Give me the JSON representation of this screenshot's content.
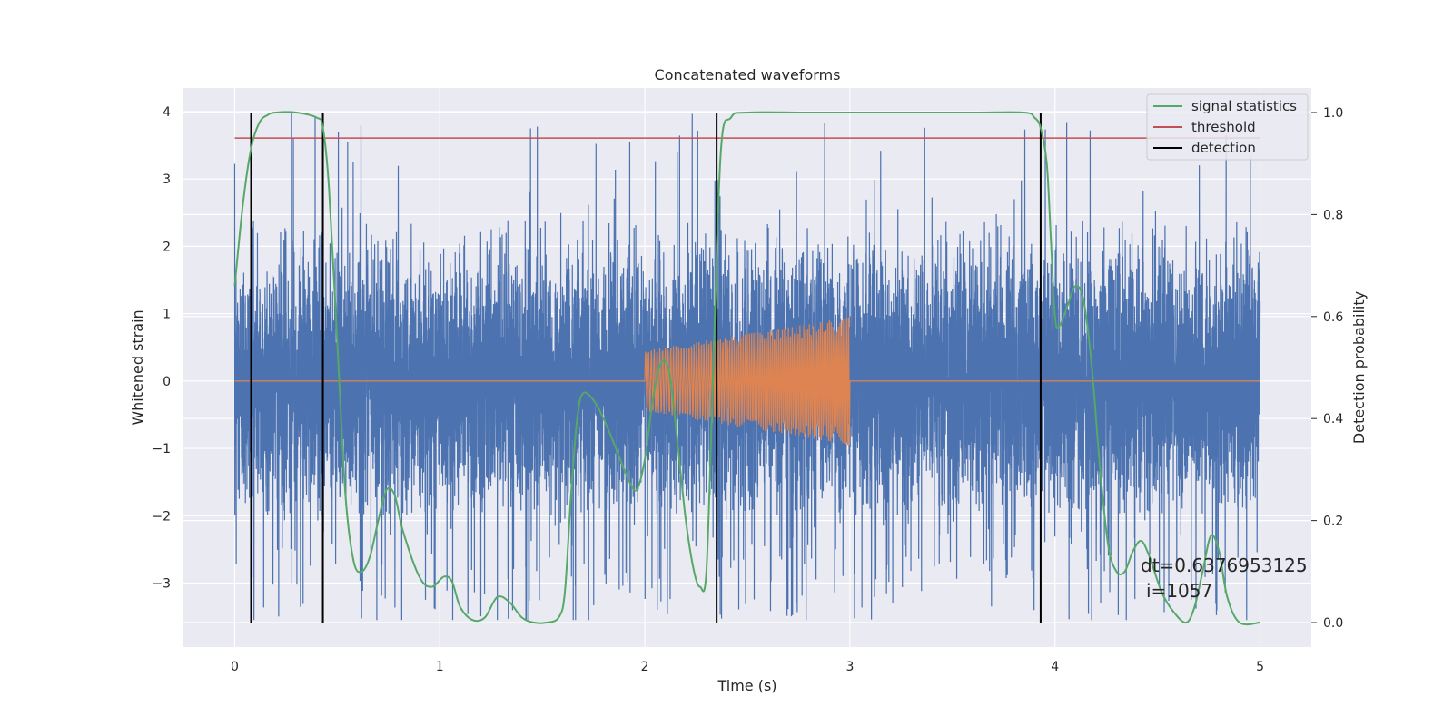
{
  "chart_data": {
    "type": "line",
    "title": "Concatenated waveforms",
    "xlabel": "Time (s)",
    "ylabel": "Whitened strain",
    "y2label": "Detection probability",
    "xlim": [
      -0.25,
      5.25
    ],
    "ylim": [
      -3.95,
      4.35
    ],
    "y2lim": [
      -0.048,
      1.048
    ],
    "x_ticks": [
      0,
      1,
      2,
      3,
      4,
      5
    ],
    "y_ticks": [
      -3,
      -2,
      -1,
      0,
      1,
      2,
      3,
      4
    ],
    "y2_ticks": [
      0.0,
      0.2,
      0.4,
      0.6,
      0.8,
      1.0
    ],
    "grid": true,
    "legend_position": "top-right",
    "colors": {
      "strain": "#4c72b0",
      "template": "#dd8452",
      "signal": "#55a868",
      "threshold": "#c44e52",
      "detection": "#000000",
      "axes_bg": "#eaeaf2"
    },
    "series": [
      {
        "name": "signal statistics",
        "axis": "right",
        "x": [
          0,
          0.04,
          0.08,
          0.12,
          0.16,
          0.2,
          0.3,
          0.4,
          0.43,
          0.46,
          0.5,
          0.54,
          0.58,
          0.62,
          0.66,
          0.7,
          0.74,
          0.78,
          0.82,
          0.9,
          0.96,
          1.02,
          1.06,
          1.1,
          1.16,
          1.22,
          1.28,
          1.34,
          1.4,
          1.46,
          1.52,
          1.58,
          1.61,
          1.64,
          1.67,
          1.7,
          1.76,
          1.82,
          1.88,
          1.92,
          1.96,
          2.0,
          2.04,
          2.08,
          2.12,
          2.16,
          2.2,
          2.24,
          2.27,
          2.3,
          2.33,
          2.37,
          2.42,
          2.5,
          2.8,
          3.2,
          3.6,
          3.85,
          3.9,
          3.93,
          3.96,
          3.98,
          4.0,
          4.02,
          4.06,
          4.1,
          4.14,
          4.18,
          4.22,
          4.26,
          4.3,
          4.34,
          4.38,
          4.42,
          4.46,
          4.52,
          4.58,
          4.64,
          4.68,
          4.72,
          4.76,
          4.8,
          4.84,
          4.9,
          5.0
        ],
        "y": [
          0.66,
          0.82,
          0.93,
          0.98,
          0.995,
          1.0,
          1.0,
          0.99,
          0.97,
          0.85,
          0.55,
          0.25,
          0.12,
          0.1,
          0.13,
          0.2,
          0.26,
          0.25,
          0.18,
          0.09,
          0.07,
          0.09,
          0.08,
          0.03,
          0.005,
          0.01,
          0.05,
          0.04,
          0.01,
          0.0,
          0.0,
          0.01,
          0.06,
          0.25,
          0.4,
          0.45,
          0.43,
          0.38,
          0.32,
          0.28,
          0.26,
          0.32,
          0.44,
          0.51,
          0.49,
          0.35,
          0.2,
          0.1,
          0.07,
          0.1,
          0.45,
          0.92,
          0.99,
          1.0,
          1.0,
          1.0,
          1.0,
          1.0,
          0.99,
          0.97,
          0.9,
          0.75,
          0.6,
          0.58,
          0.62,
          0.66,
          0.63,
          0.5,
          0.3,
          0.15,
          0.1,
          0.1,
          0.14,
          0.16,
          0.13,
          0.06,
          0.02,
          0.0,
          0.03,
          0.1,
          0.17,
          0.14,
          0.05,
          0.0,
          0.0
        ]
      },
      {
        "name": "threshold",
        "axis": "right",
        "x": [
          0,
          5
        ],
        "y": [
          0.95,
          0.95
        ]
      },
      {
        "name": "detection",
        "axis": "right",
        "orientation": "vertical",
        "x": [
          0.08,
          0.43,
          2.35,
          3.93
        ],
        "y_range": [
          0,
          1
        ]
      }
    ],
    "strain_noise": {
      "x_range": [
        0,
        5
      ],
      "sample_rate": 2048,
      "typical_range": [
        -2.0,
        2.4
      ],
      "peak_max": 4.05,
      "peak_min": -3.55
    },
    "template_chirp": {
      "x_range": [
        2,
        3
      ],
      "amplitude_start": 0.45,
      "amplitude_end": 0.95,
      "value_outside": 0
    },
    "annotation": {
      "line1": "dt=0.6376953125",
      "line2": "i=1057"
    }
  }
}
